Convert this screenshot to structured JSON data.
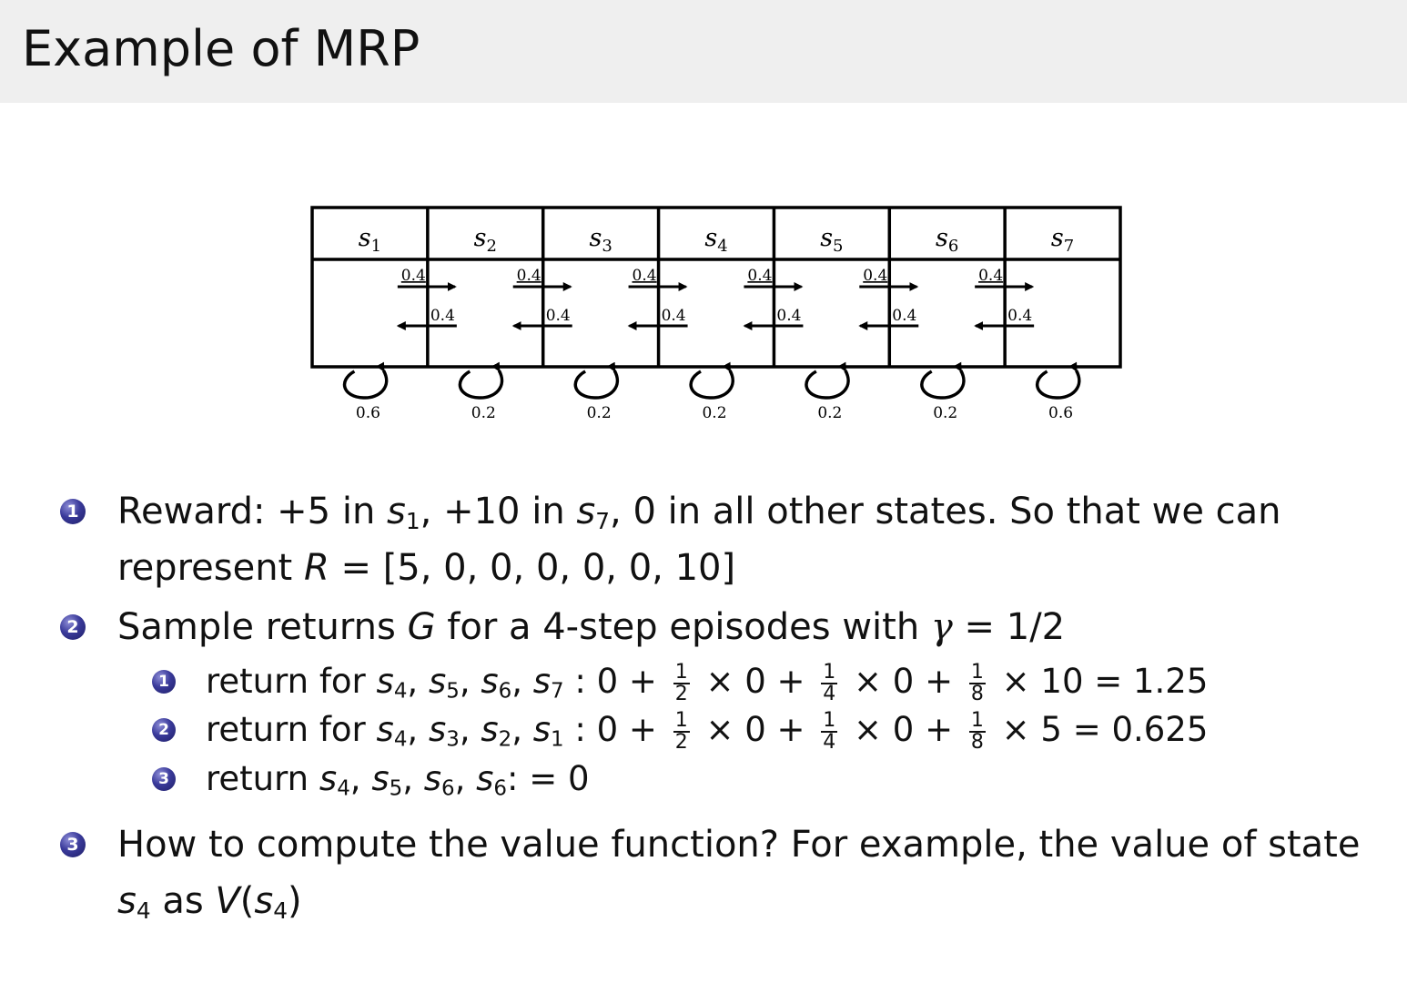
{
  "header": {
    "title": "Example of MRP"
  },
  "diagram": {
    "states": [
      {
        "name": "s",
        "index": "1"
      },
      {
        "name": "s",
        "index": "2"
      },
      {
        "name": "s",
        "index": "3"
      },
      {
        "name": "s",
        "index": "4"
      },
      {
        "name": "s",
        "index": "5"
      },
      {
        "name": "s",
        "index": "6"
      },
      {
        "name": "s",
        "index": "7"
      }
    ],
    "forward_probs": [
      "0.4",
      "0.4",
      "0.4",
      "0.4",
      "0.4",
      "0.4"
    ],
    "backward_probs": [
      "0.4",
      "0.4",
      "0.4",
      "0.4",
      "0.4",
      "0.4"
    ],
    "self_loop_probs": [
      "0.6",
      "0.2",
      "0.2",
      "0.2",
      "0.2",
      "0.2",
      "0.6"
    ]
  },
  "bullets": {
    "b1": {
      "num": "1",
      "t1": "Reward: +5 in ",
      "s1": "s",
      "s1i": "1",
      "t2": ", +10 in ",
      "s7": "s",
      "s7i": "7",
      "t3": ", 0 in all other states. So that we can",
      "t4": "represent ",
      "R": "R",
      "t5": " = [5, 0, 0, 0, 0, 0, 10]"
    },
    "b2": {
      "num": "2",
      "t1": "Sample returns ",
      "G": "G",
      "t2": " for a 4-step episodes with ",
      "gamma": "γ",
      "t3": " = 1/2",
      "subs": [
        {
          "num": "1",
          "pre": "return for ",
          "seq": [
            [
              "s",
              "4"
            ],
            [
              "s",
              "5"
            ],
            [
              "s",
              "6"
            ],
            [
              "s",
              "7"
            ]
          ],
          "a": " : 0 + ",
          "f1": [
            "1",
            "2"
          ],
          "b": " × 0 + ",
          "f2": [
            "1",
            "4"
          ],
          "c": " × 0 + ",
          "f3": [
            "1",
            "8"
          ],
          "d": " × 10 = 1.25"
        },
        {
          "num": "2",
          "pre": "return for ",
          "seq": [
            [
              "s",
              "4"
            ],
            [
              "s",
              "3"
            ],
            [
              "s",
              "2"
            ],
            [
              "s",
              "1"
            ]
          ],
          "a": " : 0 + ",
          "f1": [
            "1",
            "2"
          ],
          "b": " × 0 + ",
          "f2": [
            "1",
            "4"
          ],
          "c": " × 0 + ",
          "f3": [
            "1",
            "8"
          ],
          "d": " × 5 = 0.625"
        },
        {
          "num": "3",
          "pre": "return ",
          "seq": [
            [
              "s",
              "4"
            ],
            [
              "s",
              "5"
            ],
            [
              "s",
              "6"
            ],
            [
              "s",
              "6"
            ]
          ],
          "tail": ":  = 0"
        }
      ]
    },
    "b3": {
      "num": "3",
      "t1": "How to compute the value function? For example, the value of state",
      "s4": "s",
      "s4i": "4",
      "t2": " as ",
      "V": "V",
      "t3": "(",
      "s4b": "s",
      "s4bi": "4",
      "t4": ")"
    }
  }
}
